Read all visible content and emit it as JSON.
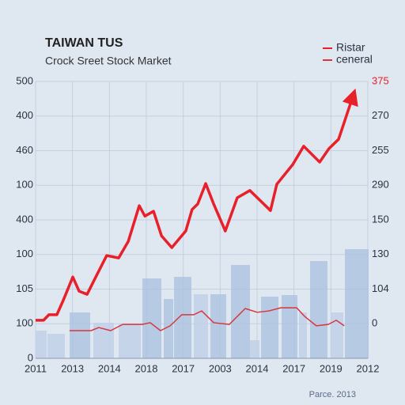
{
  "chart_data": {
    "type": "line",
    "title": "TAIWAN TUS",
    "subtitle": "Crock Sreet Stock Market",
    "left_axis_labels": [
      "500",
      "400",
      "460",
      "100",
      "400",
      "100",
      "105",
      "100",
      "0"
    ],
    "right_axis_labels": [
      "375",
      "270",
      "255",
      "290",
      "150",
      "130",
      "104",
      "0"
    ],
    "x_axis_labels": [
      "2011",
      "2013",
      "2014",
      "2018",
      "2017",
      "2003",
      "2014",
      "2017",
      "2019",
      "2012"
    ],
    "source": "Parce. 2013",
    "xlim": [
      0,
      100
    ],
    "ylim": [
      0,
      8
    ],
    "legend": "top-right",
    "series": [
      {
        "name": "Ristar",
        "color": "#e8202a",
        "width": 3.5,
        "x": [
          0,
          2.4,
          4.0,
          6.4,
          8.3,
          11.2,
          13.1,
          15.5,
          17.9,
          21.4,
          25.0,
          27.9,
          31.2,
          32.9,
          35.5,
          37.9,
          41.0,
          45.2,
          47.1,
          48.8,
          51.2,
          53.6,
          57.1,
          60.7,
          64.5,
          70.7,
          72.6,
          77.4,
          80.7,
          85.5,
          88.3,
          91.2,
          95.5
        ],
        "values": [
          1.1,
          1.1,
          1.26,
          1.26,
          1.67,
          2.35,
          1.94,
          1.85,
          2.31,
          2.97,
          2.9,
          3.38,
          4.41,
          4.11,
          4.25,
          3.54,
          3.2,
          3.68,
          4.3,
          4.46,
          5.05,
          4.46,
          3.68,
          4.64,
          4.85,
          4.27,
          5.03,
          5.6,
          6.13,
          5.67,
          6.06,
          6.33,
          7.57
        ]
      },
      {
        "name": "ceneral",
        "color": "#d8353e",
        "width": 1.5,
        "x": [
          10.2,
          16.7,
          19.0,
          22.6,
          26.2,
          32.1,
          34.5,
          37.6,
          40.5,
          44.0,
          47.6,
          50.0,
          53.6,
          58.3,
          63.1,
          66.7,
          70.2,
          73.8,
          78.6,
          81.0,
          84.5,
          88.1,
          90.5,
          92.9
        ],
        "values": [
          0.8,
          0.8,
          0.89,
          0.8,
          0.98,
          0.98,
          1.03,
          0.8,
          0.94,
          1.26,
          1.26,
          1.37,
          1.03,
          0.98,
          1.44,
          1.33,
          1.37,
          1.46,
          1.46,
          1.21,
          0.94,
          0.98,
          1.1,
          0.94
        ]
      }
    ]
  }
}
